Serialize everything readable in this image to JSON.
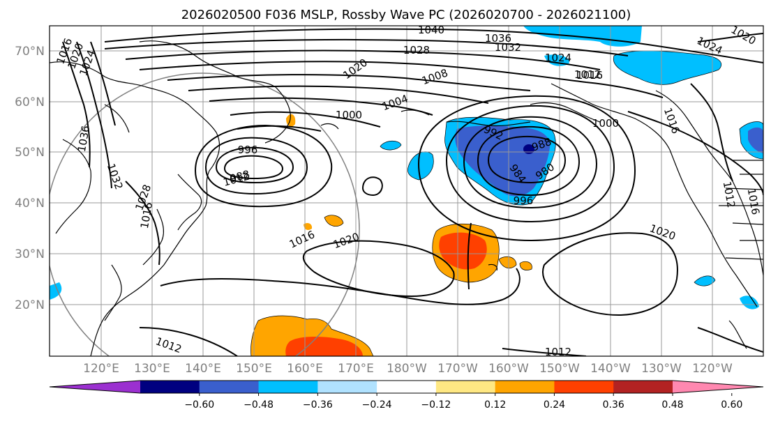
{
  "title": "2026020500 F036 MSLP, Rossby Wave PC (2026020700 - 2026021100)",
  "lat_labels": [
    "70°N",
    "60°N",
    "50°N",
    "40°N",
    "30°N",
    "20°N"
  ],
  "lon_labels": [
    "120°E",
    "130°E",
    "140°E",
    "150°E",
    "160°E",
    "170°E",
    "180°W",
    "170°W",
    "160°W",
    "150°W",
    "140°W",
    "130°W",
    "120°W"
  ],
  "colorbar": {
    "colors": [
      "#9b30d0",
      "#000080",
      "#3a5fcd",
      "#00bfff",
      "#b0e2ff",
      "#ffffff",
      "#ffe883",
      "#ffa500",
      "#ff4000",
      "#b22222",
      "#ff88b0"
    ],
    "ticks": [
      "−0.60",
      "−0.48",
      "−0.36",
      "−0.24",
      "−0.12",
      "0.12",
      "0.24",
      "0.36",
      "0.48",
      "0.60"
    ]
  },
  "isobar_labels": [
    "1040",
    "1036",
    "1032",
    "1028",
    "1024",
    "1020",
    "1016",
    "1012",
    "1008",
    "1004",
    "1000",
    "996",
    "992",
    "988",
    "984",
    "980",
    "1020",
    "1020",
    "1016",
    "1016",
    "1020",
    "1024",
    "1036",
    "1032",
    "1028",
    "1000",
    "996",
    "988",
    "1016",
    "1012",
    "1020",
    "1012",
    "1016",
    "1024",
    "1012",
    "1016",
    "1012"
  ],
  "colors": {
    "isobar": "#000000",
    "grid": "#999999",
    "land": "#000000",
    "circle": "#808080"
  }
}
